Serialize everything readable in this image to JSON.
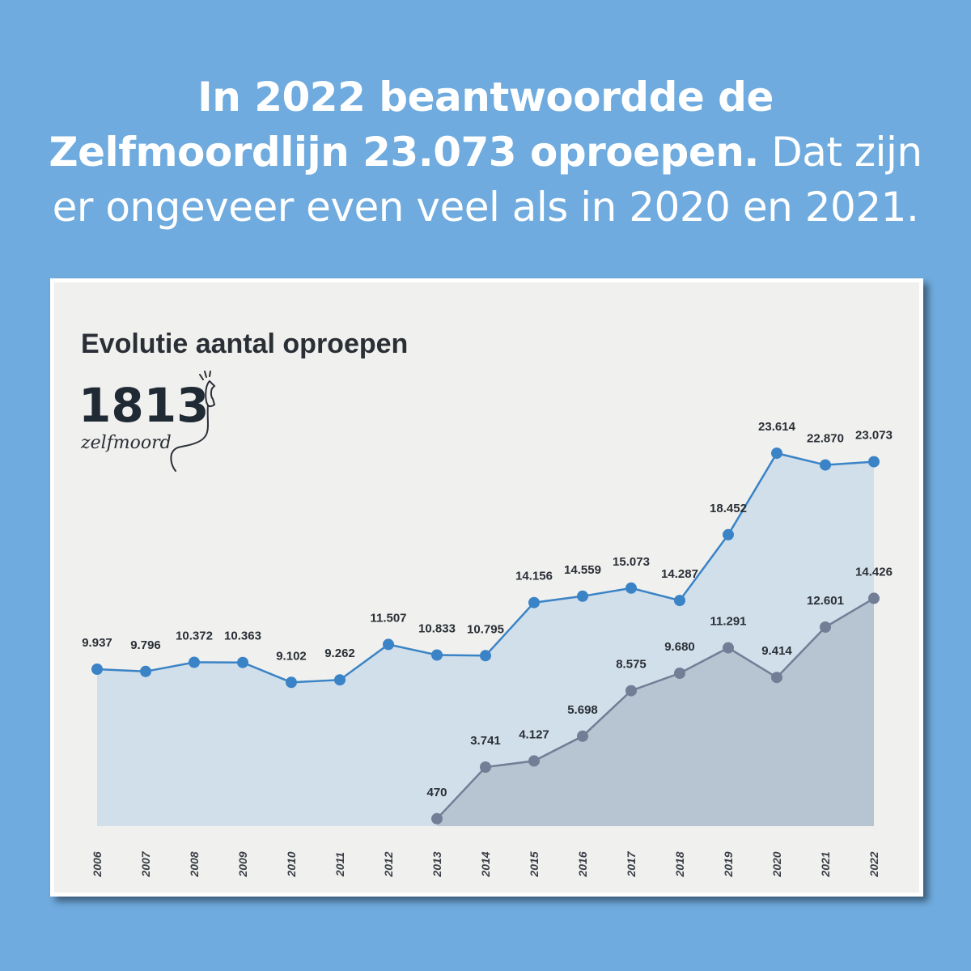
{
  "headline": {
    "bold": "In 2022 beantwoordde de Zelfmoordlijn 23.073 oproepen.",
    "light": "Dat zijn er ongeveer even veel als in 2020 en 2021."
  },
  "logo": {
    "number": "1813",
    "word": "zelfmoord",
    "icon": "phone-handset-icon"
  },
  "colors": {
    "background": "#6fabde",
    "series1_line": "#3a83c6",
    "series1_fill": "#d1dfea",
    "series2_line": "#727e96",
    "series2_fill": "#b7c4d1"
  },
  "chart_data": {
    "type": "area",
    "title": "Evolutie aantal oproepen",
    "x": [
      "2006",
      "2007",
      "2008",
      "2009",
      "2010",
      "2011",
      "2012",
      "2013",
      "2014",
      "2015",
      "2016",
      "2017",
      "2018",
      "2019",
      "2020",
      "2021",
      "2022"
    ],
    "series": [
      {
        "values": [
          9937,
          9796,
          10372,
          10363,
          9102,
          9262,
          11507,
          10833,
          10795,
          14156,
          14559,
          15073,
          14287,
          18452,
          23614,
          22870,
          23073
        ],
        "labels": [
          "9.937",
          "9.796",
          "10.372",
          "10.363",
          "9.102",
          "9.262",
          "11.507",
          "10.833",
          "10.795",
          "14.156",
          "14.559",
          "15.073",
          "14.287",
          "18.452",
          "23.614",
          "22.870",
          "23.073"
        ]
      },
      {
        "values": [
          null,
          null,
          null,
          null,
          null,
          null,
          null,
          470,
          3741,
          4127,
          5698,
          8575,
          9680,
          11291,
          9414,
          12601,
          14426
        ],
        "labels": [
          "",
          "",
          "",
          "",
          "",
          "",
          "",
          "470",
          "3.741",
          "4.127",
          "5.698",
          "8.575",
          "9.680",
          "11.291",
          "9.414",
          "12.601",
          "14.426"
        ]
      }
    ],
    "ylim": [
      0,
      24000
    ],
    "grid": false,
    "legend": "none"
  }
}
